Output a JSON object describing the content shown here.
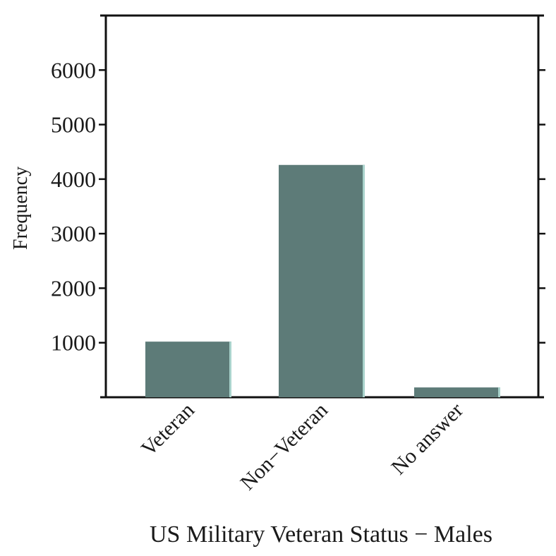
{
  "chart_data": {
    "type": "bar",
    "categories": [
      "Veteran",
      "Non−Veteran",
      "No answer"
    ],
    "values": [
      1020,
      4260,
      180
    ],
    "xlabel": "US Military Veteran Status − Males",
    "ylabel": "Frequency",
    "yticks": [
      1000,
      2000,
      3000,
      4000,
      5000,
      6000
    ],
    "ylim": [
      0,
      7000
    ],
    "bar_color": "#5d7b78",
    "bar_highlight_color": "#a9d3cc",
    "grid": false
  }
}
